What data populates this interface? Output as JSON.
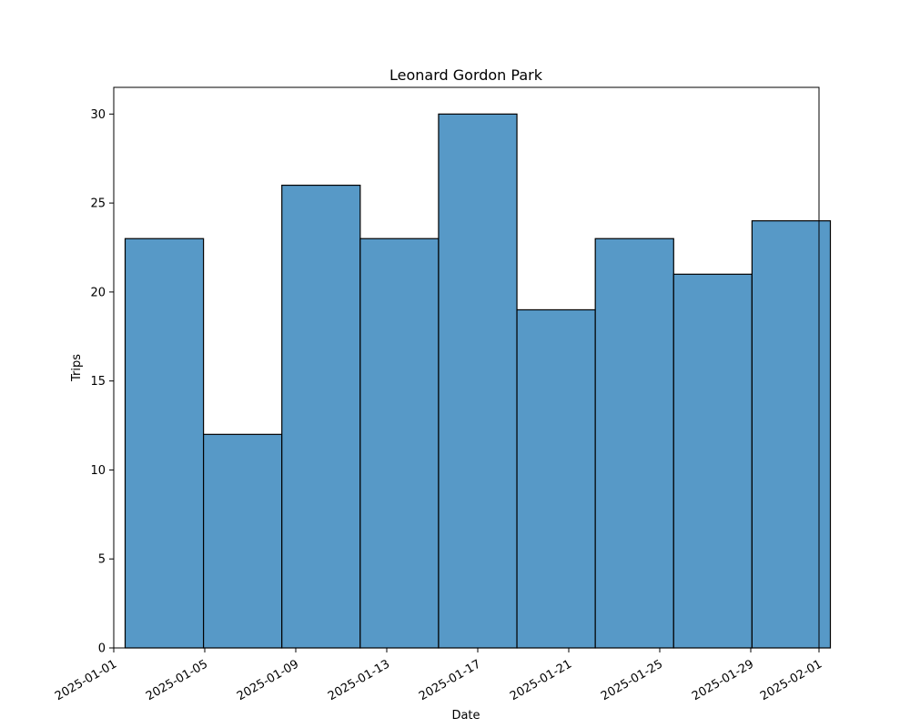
{
  "chart_data": {
    "type": "bar",
    "title": "Leonard Gordon Park",
    "xlabel": "Date",
    "ylabel": "Trips",
    "bins": [
      {
        "start": "2025-01-01 12:00",
        "end": "2025-01-04 22:40",
        "value": 23
      },
      {
        "start": "2025-01-04 22:40",
        "end": "2025-01-08 09:20",
        "value": 12
      },
      {
        "start": "2025-01-08 09:20",
        "end": "2025-01-11 20:00",
        "value": 26
      },
      {
        "start": "2025-01-11 20:00",
        "end": "2025-01-15 06:40",
        "value": 23
      },
      {
        "start": "2025-01-15 06:40",
        "end": "2025-01-18 17:20",
        "value": 30
      },
      {
        "start": "2025-01-18 17:20",
        "end": "2025-01-22 04:00",
        "value": 19
      },
      {
        "start": "2025-01-22 04:00",
        "end": "2025-01-25 14:40",
        "value": 23
      },
      {
        "start": "2025-01-25 14:40",
        "end": "2025-01-29 01:20",
        "value": 21
      },
      {
        "start": "2025-01-29 01:20",
        "end": "2025-02-01 12:00",
        "value": 24
      }
    ],
    "x_ticks": [
      "2025-01-01",
      "2025-01-05",
      "2025-01-09",
      "2025-01-13",
      "2025-01-17",
      "2025-01-21",
      "2025-01-25",
      "2025-01-29",
      "2025-02-01"
    ],
    "y_ticks": [
      0,
      5,
      10,
      15,
      20,
      25,
      30
    ],
    "xlim": [
      "2025-01-01 00:00",
      "2025-02-01 00:00"
    ],
    "ylim": [
      0,
      31.5
    ],
    "grid": false,
    "colors": {
      "bar_fill": "#5799c7",
      "bar_edge": "#000000"
    }
  }
}
